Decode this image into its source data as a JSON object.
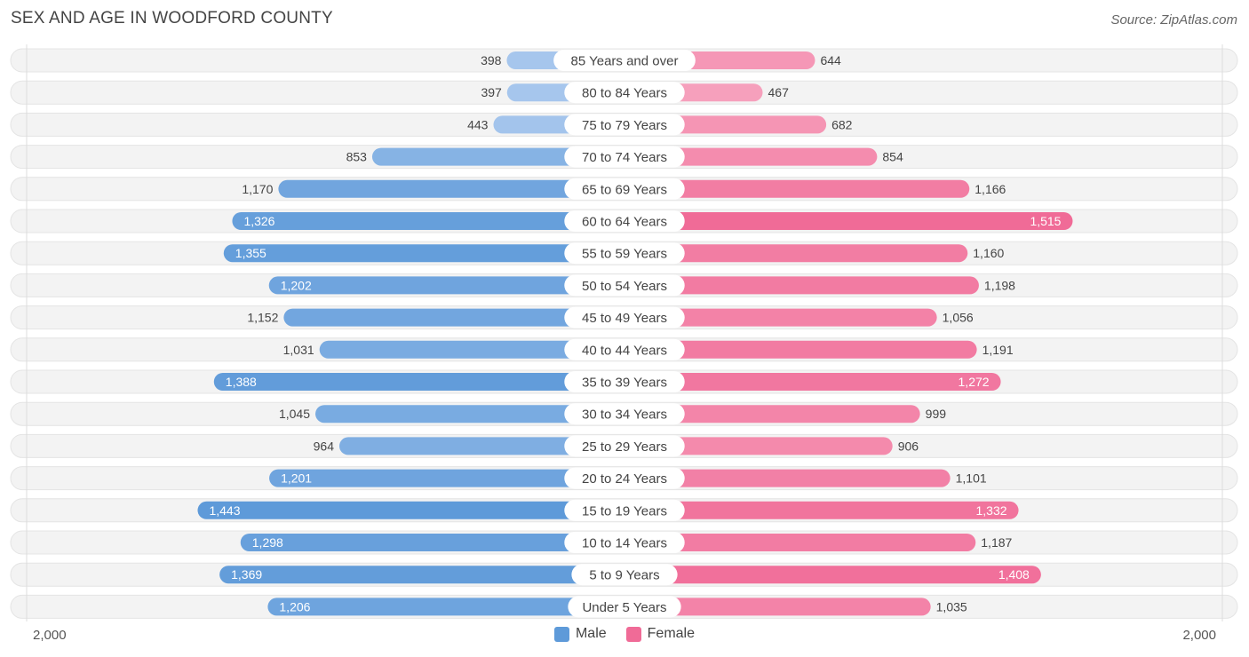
{
  "title": "SEX AND AGE IN WOODFORD COUNTY",
  "source": "Source: ZipAtlas.com",
  "colors": {
    "male_light": "#a9c8ee",
    "male_dark": "#5e9ad9",
    "female_light": "#f7a6c0",
    "female_dark": "#f06b97",
    "row_bg": "#f2f2f2"
  },
  "legend": {
    "male": "Male",
    "female": "Female"
  },
  "axis": {
    "left_label": "2,000",
    "right_label": "2,000"
  },
  "chart_data": {
    "type": "bar",
    "orientation": "horizontal-butterfly",
    "title": "SEX AND AGE IN WOODFORD COUNTY",
    "xlim": [
      0,
      2000
    ],
    "categories": [
      "85 Years and over",
      "80 to 84 Years",
      "75 to 79 Years",
      "70 to 74 Years",
      "65 to 69 Years",
      "60 to 64 Years",
      "55 to 59 Years",
      "50 to 54 Years",
      "45 to 49 Years",
      "40 to 44 Years",
      "35 to 39 Years",
      "30 to 34 Years",
      "25 to 29 Years",
      "20 to 24 Years",
      "15 to 19 Years",
      "10 to 14 Years",
      "5 to 9 Years",
      "Under 5 Years"
    ],
    "series": [
      {
        "name": "Male",
        "values": [
          398,
          397,
          443,
          853,
          1170,
          1326,
          1355,
          1202,
          1152,
          1031,
          1388,
          1045,
          964,
          1201,
          1443,
          1298,
          1369,
          1206
        ],
        "labels": [
          "398",
          "397",
          "443",
          "853",
          "1,170",
          "1,326",
          "1,355",
          "1,202",
          "1,152",
          "1,031",
          "1,388",
          "1,045",
          "964",
          "1,201",
          "1,443",
          "1,298",
          "1,369",
          "1,206"
        ]
      },
      {
        "name": "Female",
        "values": [
          644,
          467,
          682,
          854,
          1166,
          1515,
          1160,
          1198,
          1056,
          1191,
          1272,
          999,
          906,
          1101,
          1332,
          1187,
          1408,
          1035
        ],
        "labels": [
          "644",
          "467",
          "682",
          "854",
          "1,166",
          "1,515",
          "1,160",
          "1,198",
          "1,056",
          "1,191",
          "1,272",
          "999",
          "906",
          "1,101",
          "1,332",
          "1,187",
          "1,408",
          "1,035"
        ]
      }
    ],
    "legend_position": "bottom-center"
  }
}
